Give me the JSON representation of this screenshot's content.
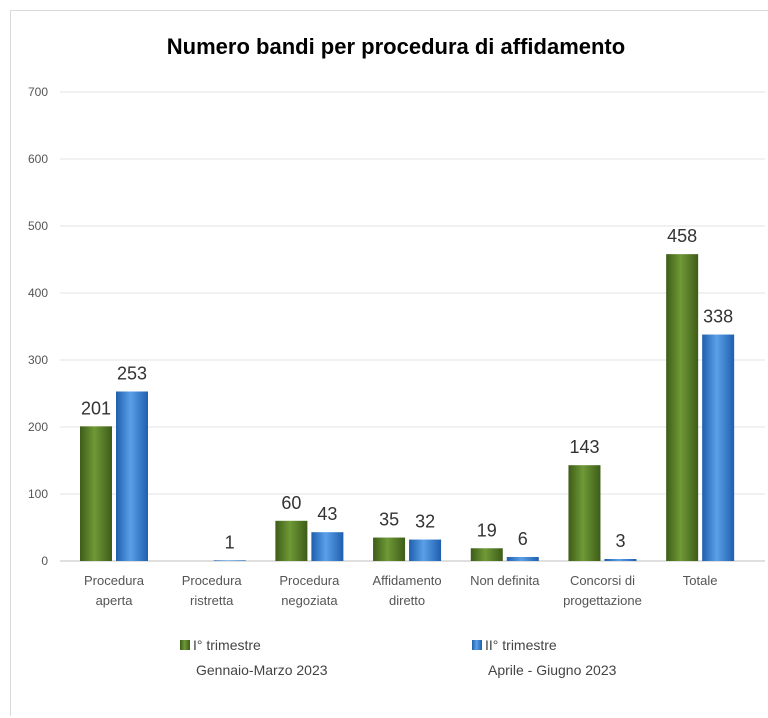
{
  "chart_data": {
    "type": "bar",
    "title": "Numero bandi per procedura  di affidamento",
    "categories": [
      [
        "Procedura",
        "aperta"
      ],
      [
        "Procedura",
        "ristretta"
      ],
      [
        "Procedura",
        "negoziata"
      ],
      [
        "Affidamento",
        "diretto"
      ],
      [
        "Non definita"
      ],
      [
        "Concorsi di",
        "progettazione"
      ],
      [
        "Totale"
      ]
    ],
    "series": [
      {
        "name": "I° trimestre",
        "name_line2": "Gennaio-Marzo 2023",
        "values": [
          201,
          null,
          60,
          35,
          19,
          143,
          458
        ],
        "color_top": "#6f9a36",
        "color_bottom": "#3d5c18"
      },
      {
        "name": "II° trimestre",
        "name_line2": "Aprile - Giugno 2023",
        "values": [
          253,
          1,
          43,
          32,
          6,
          3,
          338
        ],
        "color_top": "#5aa0e8",
        "color_bottom": "#1f5fae"
      }
    ],
    "ylim": [
      0,
      700
    ],
    "yticks": [
      0,
      100,
      200,
      300,
      400,
      500,
      600,
      700
    ],
    "xlabel": "",
    "ylabel": "",
    "grid": true,
    "legend": "bottom"
  }
}
